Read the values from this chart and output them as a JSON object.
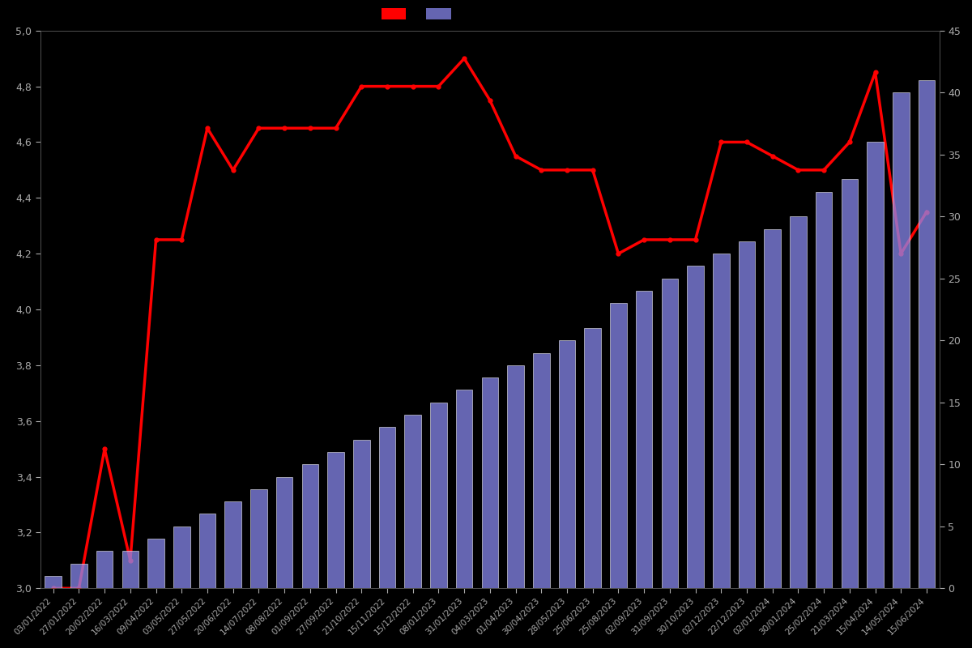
{
  "dates": [
    "03/01/2022",
    "27/01/2022",
    "20/02/2022",
    "16/03/2022",
    "09/04/2022",
    "03/05/2022",
    "27/05/2022",
    "20/06/2022",
    "14/07/2022",
    "08/08/2022",
    "01/09/2022",
    "27/09/2022",
    "21/10/2022",
    "15/11/2022",
    "15/12/2022",
    "08/01/2023",
    "31/01/2023",
    "04/03/2023",
    "01/04/2023",
    "30/04/2023",
    "28/05/2023",
    "25/06/2023",
    "25/08/2023",
    "02/09/2023",
    "31/09/2023",
    "30/10/2023",
    "02/12/2023",
    "22/12/2023",
    "02/01/2024",
    "30/01/2024",
    "25/02/2024",
    "21/03/2024",
    "15/04/2024",
    "14/05/2024",
    "15/06/2024"
  ],
  "bar_values": [
    1,
    2,
    3,
    3,
    4,
    5,
    6,
    7,
    8,
    9,
    10,
    11,
    12,
    13,
    14,
    15,
    16,
    17,
    18,
    19,
    20,
    21,
    23,
    24,
    25,
    26,
    27,
    28,
    29,
    30,
    32,
    33,
    36,
    40,
    41
  ],
  "line_values": [
    3.0,
    3.0,
    3.5,
    3.1,
    4.25,
    4.25,
    4.65,
    4.5,
    4.65,
    4.65,
    4.65,
    4.65,
    4.8,
    4.8,
    4.8,
    4.8,
    4.9,
    4.75,
    4.55,
    4.5,
    4.5,
    4.5,
    4.2,
    4.25,
    4.25,
    4.25,
    4.6,
    4.6,
    4.55,
    4.5,
    4.5,
    4.6,
    4.85,
    4.2,
    4.35
  ],
  "bg_color": "#000000",
  "bar_color": "#8888ee",
  "bar_edge_color": "#ffffff",
  "bar_alpha": 0.75,
  "bar_linewidth": 0.5,
  "line_color": "#ff0000",
  "line_width": 2.5,
  "marker": "o",
  "marker_size": 3.5,
  "marker_color": "#ff0000",
  "left_ylim": [
    3.0,
    5.0
  ],
  "right_ylim": [
    0,
    45
  ],
  "left_yticks": [
    3.0,
    3.2,
    3.4,
    3.6,
    3.8,
    4.0,
    4.2,
    4.4,
    4.6,
    4.8,
    5.0
  ],
  "right_yticks": [
    0,
    5,
    10,
    15,
    20,
    25,
    30,
    35,
    40,
    45
  ],
  "tick_labelcolor": "#aaaaaa",
  "spine_color": "#555555",
  "figsize": [
    12.0,
    8.0
  ],
  "dpi": 100
}
